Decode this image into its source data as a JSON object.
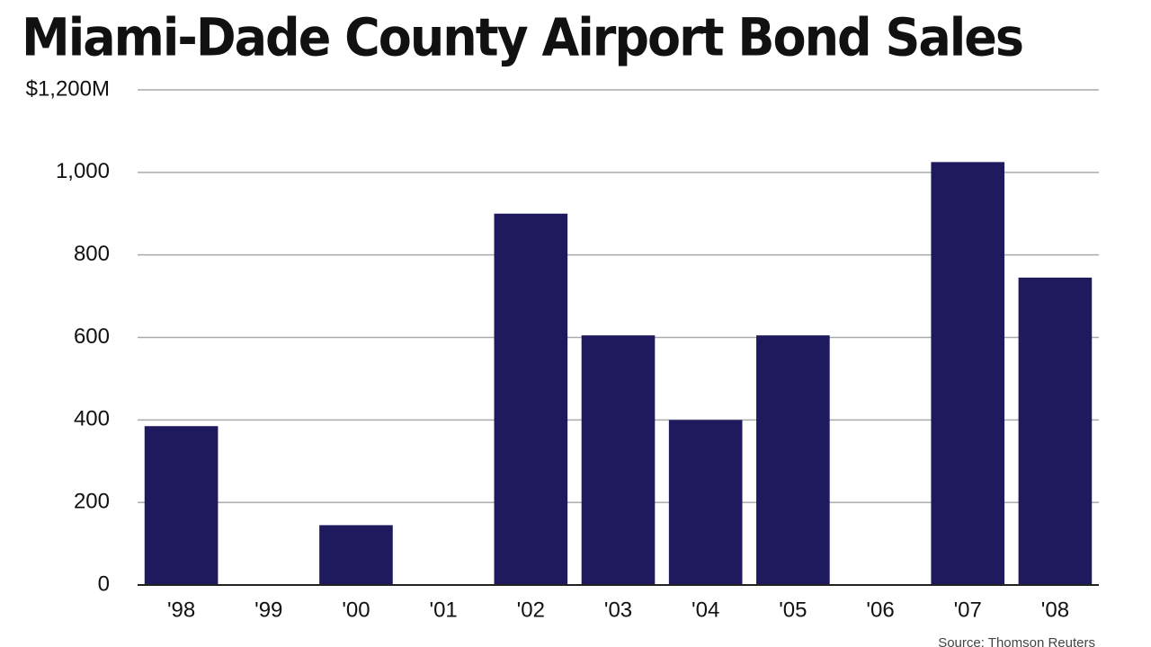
{
  "chart_data": {
    "type": "bar",
    "title": "Miami-Dade County Airport Bond Sales",
    "categories": [
      "'98",
      "'99",
      "'00",
      "'01",
      "'02",
      "'03",
      "'04",
      "'05",
      "'06",
      "'07",
      "'08"
    ],
    "values": [
      385,
      0,
      145,
      0,
      900,
      605,
      400,
      605,
      0,
      1025,
      745
    ],
    "color": "#1f1a5e",
    "ylim": [
      0,
      1200
    ],
    "yticks": [
      0,
      200,
      400,
      600,
      800,
      {
        "value": 1000,
        "label": "1,000"
      },
      {
        "value": 1200,
        "label": "$1,200M"
      }
    ],
    "grid": true,
    "source": "Source: Thomson Reuters"
  }
}
